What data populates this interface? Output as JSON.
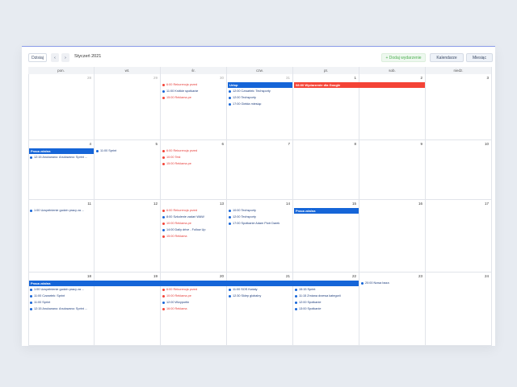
{
  "toolbar": {
    "today": "Dzisiaj",
    "prev": "‹",
    "next": "›",
    "month": "Styczeń 2021",
    "add": "+ Dodaj wydarzenie",
    "calendars": "Kalendarze",
    "view": "Miesiąc"
  },
  "weekdays": [
    "pon.",
    "wt.",
    "śr.",
    "czw.",
    "pt.",
    "sob.",
    "niedz."
  ],
  "weeks": [
    {
      "bars": [
        {
          "label": "Urlop",
          "start": 3,
          "span": 1,
          "color": "#1565d8"
        },
        {
          "label": "08:00 Wydarzenie dla Google",
          "start": 4,
          "span": 2,
          "color": "#f44336"
        }
      ],
      "days": [
        {
          "day": 28,
          "events": []
        },
        {
          "day": 29,
          "events": []
        },
        {
          "day": 30,
          "events": [
            {
              "text": "6:00 Rekurencja przed",
              "color": "#f44336"
            },
            {
              "text": "11:00 Krótkie spotkanie",
              "color": "#1565d8"
            },
            {
              "text": "15:00 Reklama.pe",
              "color": "#f44336"
            }
          ]
        },
        {
          "day": 31,
          "events": [
            {
              "text": "12:00 Czwartek: Techsporty",
              "color": "#1565d8"
            },
            {
              "text": "12:00 Techsporty",
              "color": "#1565d8"
            },
            {
              "text": "17:00 Giełda miesiąc",
              "color": "#1565d8"
            }
          ]
        },
        {
          "day": 1,
          "events": []
        },
        {
          "day": 2,
          "events": []
        },
        {
          "day": 3,
          "events": []
        }
      ]
    },
    {
      "bars": [
        {
          "label": "Praca zdalna",
          "start": 0,
          "span": 1,
          "color": "#1565d8"
        }
      ],
      "days": [
        {
          "day": 4,
          "events": [
            {
              "text": "12:15 Anulowano: Anulowano: Sprint ...",
              "color": "#1565d8"
            }
          ]
        },
        {
          "day": 5,
          "events": [
            {
              "text": "11:00 Sprint",
              "color": "#1565d8"
            }
          ]
        },
        {
          "day": 6,
          "events": [
            {
              "text": "6:00 Rekurencja przed",
              "color": "#f44336"
            },
            {
              "text": "10:00 Test",
              "color": "#f44336"
            },
            {
              "text": "15:00 Reklama.pe",
              "color": "#f44336"
            }
          ]
        },
        {
          "day": 7,
          "events": []
        },
        {
          "day": 8,
          "events": []
        },
        {
          "day": 9,
          "events": []
        },
        {
          "day": 10,
          "events": []
        }
      ]
    },
    {
      "bars": [
        {
          "label": "Praca zdalna",
          "start": 4,
          "span": 1,
          "color": "#1565d8"
        }
      ],
      "days": [
        {
          "day": 11,
          "events": [
            {
              "text": "1:00 Uzupełnienie godzin pracy za ...",
              "color": "#1565d8"
            }
          ]
        },
        {
          "day": 12,
          "events": []
        },
        {
          "day": 13,
          "events": [
            {
              "text": "6:00 Rekurencja przed",
              "color": "#f44336"
            },
            {
              "text": "8:00 Szkolenie zadań WAW",
              "color": "#1565d8"
            },
            {
              "text": "10:00 Reklama.pe",
              "color": "#f44336"
            },
            {
              "text": "14:00 Daily drive - Follow Up",
              "color": "#1565d8"
            },
            {
              "text": "15:00 Reklama",
              "color": "#f44336"
            }
          ]
        },
        {
          "day": 14,
          "events": [
            {
              "text": "10:00 Techsporty",
              "color": "#1565d8"
            },
            {
              "text": "12:00 Techsporty",
              "color": "#1565d8"
            },
            {
              "text": "17:00 Spotkanie Adam Piotr Darek",
              "color": "#1565d8"
            }
          ]
        },
        {
          "day": 15,
          "events": []
        },
        {
          "day": 16,
          "events": []
        },
        {
          "day": 17,
          "events": []
        }
      ]
    },
    {
      "bars": [
        {
          "label": "Praca zdalna",
          "start": 0,
          "span": 5,
          "color": "#1565d8"
        }
      ],
      "days": [
        {
          "day": 18,
          "events": [
            {
              "text": "1:00 Uzupełnienie godzin pracy za ...",
              "color": "#1565d8"
            },
            {
              "text": "11:00 Czwartek: Sprint",
              "color": "#1565d8"
            },
            {
              "text": "11:00 Sprint",
              "color": "#1565d8"
            },
            {
              "text": "12:15 Anulowano: Anulowano: Sprint ...",
              "color": "#1565d8"
            }
          ]
        },
        {
          "day": 19,
          "events": []
        },
        {
          "day": 20,
          "events": [
            {
              "text": "6:00 Rekurencja przed",
              "color": "#f44336"
            },
            {
              "text": "10:00 Reklama.pe",
              "color": "#f44336"
            },
            {
              "text": "12:00 Wizyportin",
              "color": "#1565d8"
            },
            {
              "text": "16:00 Reklama",
              "color": "#f44336"
            }
          ]
        },
        {
          "day": 21,
          "events": [
            {
              "text": "11:00 SOS Kwiaty",
              "color": "#1565d8"
            },
            {
              "text": "12:30 Sklep globalny",
              "color": "#1565d8"
            }
          ]
        },
        {
          "day": 22,
          "events": [
            {
              "text": "15:15 Sprint",
              "color": "#1565d8"
            },
            {
              "text": "11:15 Zmiana drzewa kategorii",
              "color": "#1565d8"
            },
            {
              "text": "12:00 Spotkanie",
              "color": "#1565d8"
            },
            {
              "text": "13:00 Spotkanie",
              "color": "#1565d8"
            }
          ]
        },
        {
          "day": 23,
          "events": [
            {
              "text": "20:00 Nowa baza",
              "color": "#1565d8"
            }
          ]
        },
        {
          "day": 24,
          "events": []
        }
      ]
    }
  ]
}
